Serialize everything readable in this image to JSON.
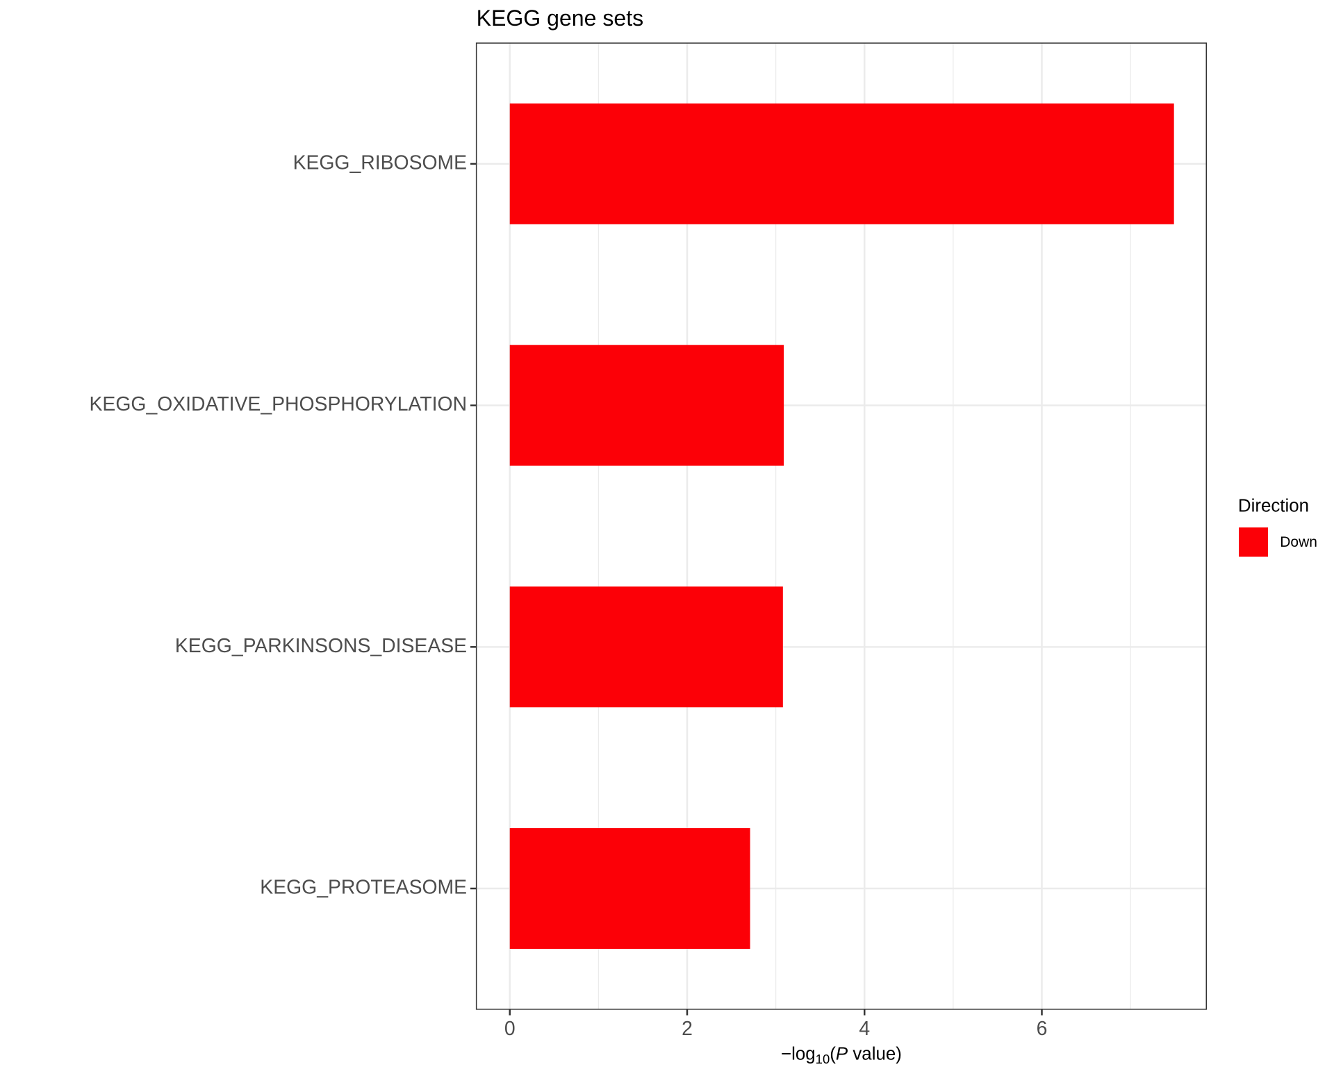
{
  "chart_data": {
    "type": "bar",
    "orientation": "horizontal",
    "title": "KEGG gene sets",
    "categories": [
      "KEGG_RIBOSOME",
      "KEGG_OXIDATIVE_PHOSPHORYLATION",
      "KEGG_PARKINSONS_DISEASE",
      "KEGG_PROTEASOME"
    ],
    "series": [
      {
        "name": "Down",
        "color": "#fc0007",
        "values": [
          7.49,
          3.09,
          3.08,
          2.71
        ]
      }
    ],
    "xlabel": [
      "−log",
      "10",
      "(",
      "P",
      " value)"
    ],
    "xlim": [
      -0.377,
      7.855
    ],
    "xticks": [
      0,
      2,
      4,
      6
    ],
    "x_minor_grid": [
      1,
      3,
      5,
      7
    ],
    "grid": true,
    "legend_title": "Direction",
    "legend_position": "right"
  }
}
